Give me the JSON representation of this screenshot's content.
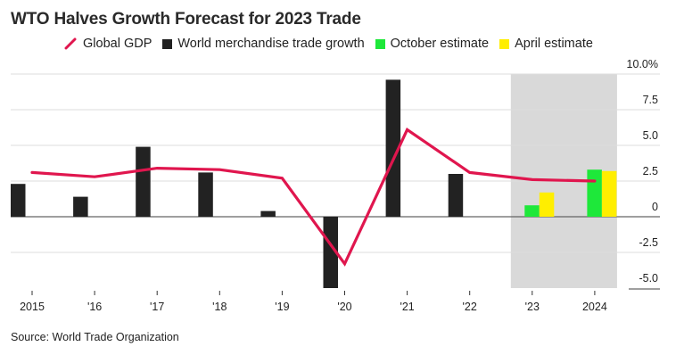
{
  "title": "WTO Halves Growth Forecast for 2023 Trade",
  "source": "Source: World Trade Organization",
  "legend": [
    {
      "key": "gdp",
      "label": "Global GDP",
      "type": "line",
      "color": "#e0164e"
    },
    {
      "key": "trade",
      "label": "World merchandise trade growth",
      "type": "square",
      "color": "#222222"
    },
    {
      "key": "october",
      "label": "October estimate",
      "type": "square",
      "color": "#1ee83a"
    },
    {
      "key": "april",
      "label": "April estimate",
      "type": "square",
      "color": "#ffee00"
    }
  ],
  "colors": {
    "gdp": "#e0164e",
    "trade": "#222222",
    "october": "#1ee83a",
    "april": "#ffee00",
    "forecast_shade": "#d9d9d9",
    "grid": "#dddddd",
    "zero_line": "#666666"
  },
  "chart_data": {
    "type": "bar",
    "title": "WTO Halves Growth Forecast for 2023 Trade",
    "xlabel": "",
    "ylabel": "",
    "categories": [
      "2015",
      "'16",
      "'17",
      "'18",
      "'19",
      "'20",
      "'21",
      "'22",
      "'23",
      "2024"
    ],
    "years": [
      2015,
      2016,
      2017,
      2018,
      2019,
      2020,
      2021,
      2022,
      2023,
      2024
    ],
    "ylim": [
      -5.0,
      10.0
    ],
    "yticks": [
      10.0,
      7.5,
      5.0,
      2.5,
      0,
      -2.5,
      -5.0
    ],
    "ytick_labels": [
      "10.0%",
      "7.5",
      "5.0",
      "2.5",
      "0",
      "-2.5",
      "-5.0"
    ],
    "grid": true,
    "legend_position": "top",
    "forecast_region": {
      "from_year": 2023,
      "to_year": 2024
    },
    "series": [
      {
        "name": "World merchandise trade growth",
        "type": "bar",
        "values": [
          2.3,
          1.4,
          4.9,
          3.1,
          0.4,
          -5.0,
          9.6,
          3.0,
          null,
          null
        ]
      },
      {
        "name": "October estimate",
        "type": "bar",
        "values": [
          null,
          null,
          null,
          null,
          null,
          null,
          null,
          null,
          0.8,
          3.3
        ]
      },
      {
        "name": "April estimate",
        "type": "bar",
        "values": [
          null,
          null,
          null,
          null,
          null,
          null,
          null,
          null,
          1.7,
          3.2
        ]
      },
      {
        "name": "Global GDP",
        "type": "line",
        "values": [
          3.1,
          2.8,
          3.4,
          3.3,
          2.7,
          -3.3,
          6.1,
          3.1,
          2.6,
          2.5
        ]
      }
    ]
  }
}
